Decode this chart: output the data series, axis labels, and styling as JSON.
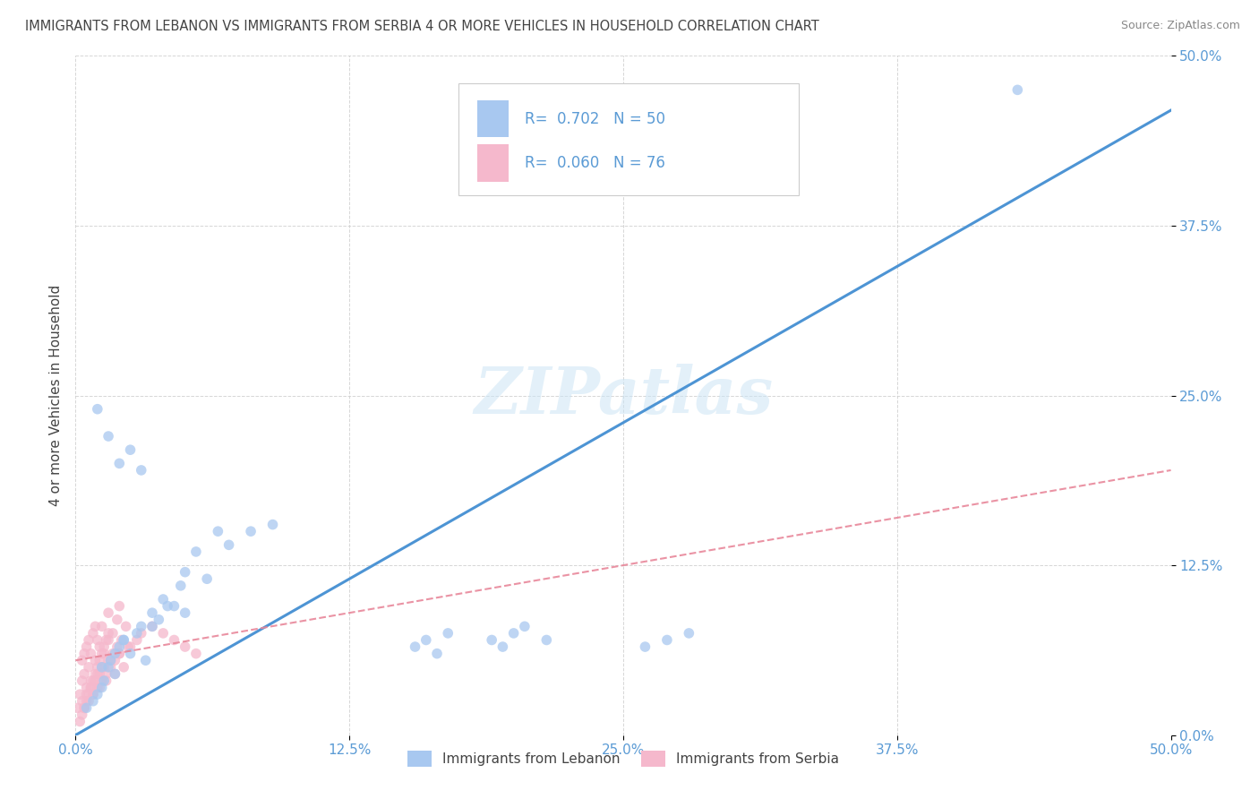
{
  "title": "IMMIGRANTS FROM LEBANON VS IMMIGRANTS FROM SERBIA 4 OR MORE VEHICLES IN HOUSEHOLD CORRELATION CHART",
  "source": "Source: ZipAtlas.com",
  "ylabel": "4 or more Vehicles in Household",
  "R_lebanon": 0.702,
  "N_lebanon": 50,
  "R_serbia": 0.06,
  "N_serbia": 76,
  "color_lebanon": "#a8c8f0",
  "color_serbia": "#f5b8cc",
  "legend_label_lebanon": "Immigrants from Lebanon",
  "legend_label_serbia": "Immigrants from Serbia",
  "trend_lebanon_color": "#4d94d4",
  "trend_serbia_color": "#e8879a",
  "watermark_text": "ZIPatlas",
  "background_color": "#ffffff",
  "grid_color": "#cccccc",
  "tick_color": "#5b9bd5",
  "title_color": "#444444",
  "source_color": "#888888",
  "xlim": [
    0.0,
    0.5
  ],
  "ylim": [
    0.0,
    0.5
  ],
  "lebanon_x": [
    0.005,
    0.008,
    0.01,
    0.012,
    0.013,
    0.015,
    0.016,
    0.018,
    0.02,
    0.022,
    0.025,
    0.028,
    0.03,
    0.032,
    0.035,
    0.038,
    0.04,
    0.042,
    0.045,
    0.048,
    0.05,
    0.055,
    0.06,
    0.065,
    0.07,
    0.08,
    0.09,
    0.01,
    0.015,
    0.02,
    0.025,
    0.03,
    0.155,
    0.16,
    0.165,
    0.17,
    0.19,
    0.195,
    0.2,
    0.205,
    0.215,
    0.26,
    0.27,
    0.28,
    0.43,
    0.012,
    0.018,
    0.022,
    0.035,
    0.05
  ],
  "lebanon_y": [
    0.02,
    0.025,
    0.03,
    0.035,
    0.04,
    0.05,
    0.055,
    0.045,
    0.065,
    0.07,
    0.06,
    0.075,
    0.08,
    0.055,
    0.09,
    0.085,
    0.1,
    0.095,
    0.095,
    0.11,
    0.12,
    0.135,
    0.115,
    0.15,
    0.14,
    0.15,
    0.155,
    0.24,
    0.22,
    0.2,
    0.21,
    0.195,
    0.065,
    0.07,
    0.06,
    0.075,
    0.07,
    0.065,
    0.075,
    0.08,
    0.07,
    0.065,
    0.07,
    0.075,
    0.475,
    0.05,
    0.06,
    0.07,
    0.08,
    0.09
  ],
  "serbia_x": [
    0.001,
    0.002,
    0.003,
    0.003,
    0.004,
    0.004,
    0.005,
    0.005,
    0.006,
    0.006,
    0.007,
    0.007,
    0.008,
    0.008,
    0.009,
    0.009,
    0.01,
    0.01,
    0.011,
    0.011,
    0.012,
    0.012,
    0.013,
    0.014,
    0.015,
    0.015,
    0.016,
    0.017,
    0.018,
    0.019,
    0.02,
    0.02,
    0.021,
    0.022,
    0.023,
    0.024,
    0.002,
    0.003,
    0.004,
    0.005,
    0.006,
    0.007,
    0.008,
    0.009,
    0.01,
    0.011,
    0.012,
    0.013,
    0.014,
    0.015,
    0.003,
    0.005,
    0.007,
    0.009,
    0.011,
    0.013,
    0.015,
    0.017,
    0.019,
    0.004,
    0.006,
    0.008,
    0.01,
    0.012,
    0.014,
    0.016,
    0.018,
    0.02,
    0.025,
    0.028,
    0.03,
    0.035,
    0.04,
    0.045,
    0.05,
    0.055
  ],
  "serbia_y": [
    0.02,
    0.03,
    0.04,
    0.055,
    0.045,
    0.06,
    0.035,
    0.065,
    0.05,
    0.07,
    0.04,
    0.06,
    0.03,
    0.075,
    0.055,
    0.08,
    0.045,
    0.07,
    0.035,
    0.065,
    0.05,
    0.08,
    0.06,
    0.04,
    0.07,
    0.09,
    0.055,
    0.075,
    0.045,
    0.085,
    0.06,
    0.095,
    0.07,
    0.05,
    0.08,
    0.065,
    0.01,
    0.015,
    0.02,
    0.025,
    0.03,
    0.035,
    0.04,
    0.045,
    0.05,
    0.055,
    0.06,
    0.065,
    0.07,
    0.075,
    0.025,
    0.03,
    0.035,
    0.04,
    0.045,
    0.05,
    0.055,
    0.06,
    0.065,
    0.02,
    0.025,
    0.03,
    0.035,
    0.04,
    0.045,
    0.05,
    0.055,
    0.06,
    0.065,
    0.07,
    0.075,
    0.08,
    0.075,
    0.07,
    0.065,
    0.06
  ]
}
